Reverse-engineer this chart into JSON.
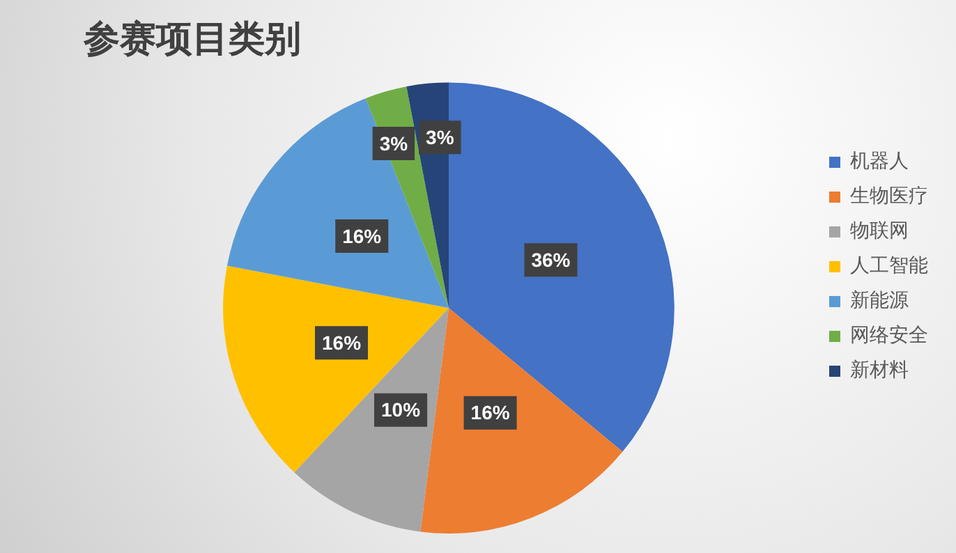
{
  "chart_data": {
    "type": "pie",
    "title": "参赛项目类别",
    "categories": [
      "机器人",
      "生物医疗",
      "物联网",
      "人工智能",
      "新能源",
      "网络安全",
      "新材料"
    ],
    "values": [
      36,
      16,
      10,
      16,
      16,
      3,
      3
    ],
    "value_labels": [
      "36%",
      "16%",
      "10%",
      "16%",
      "16%",
      "3%",
      "3%"
    ],
    "colors": [
      "#4472c4",
      "#ed7d31",
      "#a5a5a5",
      "#ffc000",
      "#5b9bd5",
      "#70ad47",
      "#264478"
    ],
    "legend": "right"
  }
}
